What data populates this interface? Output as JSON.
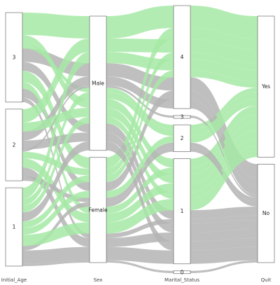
{
  "chart_data": {
    "type": "alluvial",
    "title": "",
    "axes": [
      {
        "name": "Initial_Age",
        "strata": [
          "3",
          "2",
          "1"
        ]
      },
      {
        "name": "Sex",
        "strata": [
          "Male",
          "Female"
        ]
      },
      {
        "name": "Marital_Status",
        "strata": [
          "4",
          "3",
          "2",
          "1",
          "0"
        ]
      },
      {
        "name": "Quit",
        "strata": [
          "Yes",
          "No"
        ]
      }
    ],
    "fill_variable": "Quit",
    "fill_colors": {
      "Yes": "#a6e9a6",
      "No": "#b4b4b4"
    },
    "flows": [
      {
        "path": [
          "3",
          "Male",
          "4",
          "Yes"
        ],
        "count": 10
      },
      {
        "path": [
          "3",
          "Male",
          "4",
          "No"
        ],
        "count": 6
      },
      {
        "path": [
          "3",
          "Male",
          "1",
          "Yes"
        ],
        "count": 4
      },
      {
        "path": [
          "3",
          "Male",
          "1",
          "No"
        ],
        "count": 4
      },
      {
        "path": [
          "3",
          "Male",
          "2",
          "Yes"
        ],
        "count": 2
      },
      {
        "path": [
          "3",
          "Female",
          "4",
          "Yes"
        ],
        "count": 5
      },
      {
        "path": [
          "3",
          "Female",
          "4",
          "No"
        ],
        "count": 4
      },
      {
        "path": [
          "3",
          "Female",
          "1",
          "Yes"
        ],
        "count": 3
      },
      {
        "path": [
          "3",
          "Female",
          "1",
          "No"
        ],
        "count": 2
      },
      {
        "path": [
          "2",
          "Male",
          "4",
          "Yes"
        ],
        "count": 6
      },
      {
        "path": [
          "2",
          "Male",
          "4",
          "No"
        ],
        "count": 4
      },
      {
        "path": [
          "2",
          "Male",
          "1",
          "Yes"
        ],
        "count": 4
      },
      {
        "path": [
          "2",
          "Male",
          "1",
          "No"
        ],
        "count": 4
      },
      {
        "path": [
          "2",
          "Male",
          "3",
          "No"
        ],
        "count": 1
      },
      {
        "path": [
          "2",
          "Female",
          "4",
          "Yes"
        ],
        "count": 3
      },
      {
        "path": [
          "2",
          "Female",
          "1",
          "Yes"
        ],
        "count": 4
      },
      {
        "path": [
          "2",
          "Female",
          "1",
          "No"
        ],
        "count": 4
      },
      {
        "path": [
          "2",
          "Female",
          "2",
          "No"
        ],
        "count": 2
      },
      {
        "path": [
          "1",
          "Male",
          "4",
          "Yes"
        ],
        "count": 5
      },
      {
        "path": [
          "1",
          "Male",
          "2",
          "Yes"
        ],
        "count": 3
      },
      {
        "path": [
          "1",
          "Male",
          "1",
          "Yes"
        ],
        "count": 3
      },
      {
        "path": [
          "1",
          "Male",
          "1",
          "No"
        ],
        "count": 4
      },
      {
        "path": [
          "1",
          "Female",
          "4",
          "Yes"
        ],
        "count": 3
      },
      {
        "path": [
          "1",
          "Female",
          "2",
          "Yes"
        ],
        "count": 3
      },
      {
        "path": [
          "1",
          "Female",
          "2",
          "No"
        ],
        "count": 2
      },
      {
        "path": [
          "1",
          "Female",
          "1",
          "Yes"
        ],
        "count": 5
      },
      {
        "path": [
          "1",
          "Female",
          "1",
          "No"
        ],
        "count": 6
      },
      {
        "path": [
          "1",
          "Female",
          "0",
          "No"
        ],
        "count": 1
      }
    ]
  }
}
